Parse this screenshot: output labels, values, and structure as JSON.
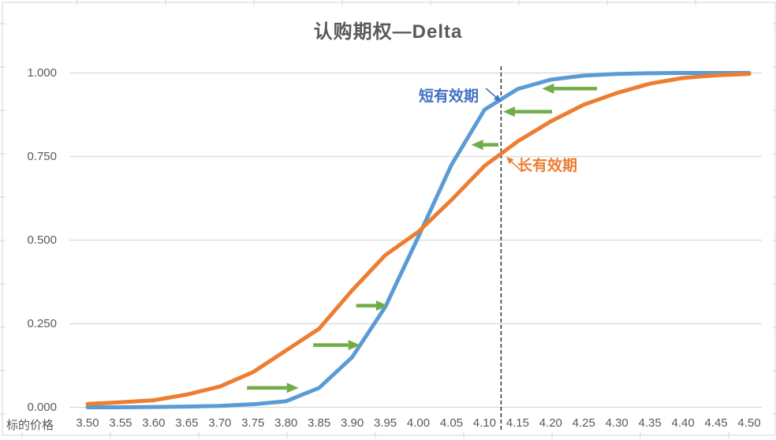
{
  "chart_data": {
    "type": "line",
    "title": "认购期权—Delta",
    "xlabel": "标的价格",
    "ylabel": "",
    "ylim": [
      0,
      1
    ],
    "grid": true,
    "legend_position": "none",
    "y_ticks": [
      "1.000",
      "0.750",
      "0.500",
      "0.250",
      "0.000"
    ],
    "categories": [
      "3.50",
      "3.55",
      "3.60",
      "3.65",
      "3.70",
      "3.75",
      "3.80",
      "3.85",
      "3.90",
      "3.95",
      "4.00",
      "4.05",
      "4.10",
      "4.15",
      "4.20",
      "4.25",
      "4.30",
      "4.35",
      "4.40",
      "4.45",
      "4.50"
    ],
    "series": [
      {
        "name": "短有效期",
        "color": "#5B9BD5",
        "values": [
          0.0,
          0.0,
          0.001,
          0.002,
          0.004,
          0.009,
          0.018,
          0.058,
          0.15,
          0.3,
          0.51,
          0.725,
          0.89,
          0.952,
          0.98,
          0.992,
          0.997,
          0.999,
          1.0,
          1.0,
          1.0
        ]
      },
      {
        "name": "长有效期",
        "color": "#ED7D31",
        "values": [
          0.01,
          0.015,
          0.021,
          0.038,
          0.062,
          0.105,
          0.17,
          0.235,
          0.35,
          0.455,
          0.525,
          0.62,
          0.722,
          0.795,
          0.855,
          0.905,
          0.94,
          0.968,
          0.985,
          0.993,
          0.997
        ]
      }
    ],
    "reference_line": {
      "price": 4.125,
      "style": "dashed",
      "color": "#262626"
    },
    "annotations": {
      "short_label": {
        "text": "短有效期",
        "color": "#4472C4",
        "arrow": {
          "from_price": 4.102,
          "from_delta": 0.954,
          "to_price": 4.125,
          "to_delta": 0.914
        }
      },
      "long_label": {
        "text": "长有效期",
        "color": "#ED7D31",
        "arrow": {
          "from_price": 4.154,
          "from_delta": 0.71,
          "to_price": 4.133,
          "to_delta": 0.749
        }
      },
      "green_arrows": {
        "color": "#70AD47",
        "items": [
          {
            "delta": 0.058,
            "from_price": 3.741,
            "to_price": 3.819
          },
          {
            "delta": 0.186,
            "from_price": 3.841,
            "to_price": 3.912
          },
          {
            "delta": 0.304,
            "from_price": 3.906,
            "to_price": 3.954
          },
          {
            "delta": 0.953,
            "from_price": 4.27,
            "to_price": 4.187
          },
          {
            "delta": 0.884,
            "from_price": 4.202,
            "to_price": 4.128
          },
          {
            "delta": 0.785,
            "from_price": 4.121,
            "to_price": 4.08
          }
        ]
      }
    },
    "colors": {
      "grid": "#D9D9D9",
      "border": "#D6D6D6",
      "axis_text": "#595959"
    }
  }
}
